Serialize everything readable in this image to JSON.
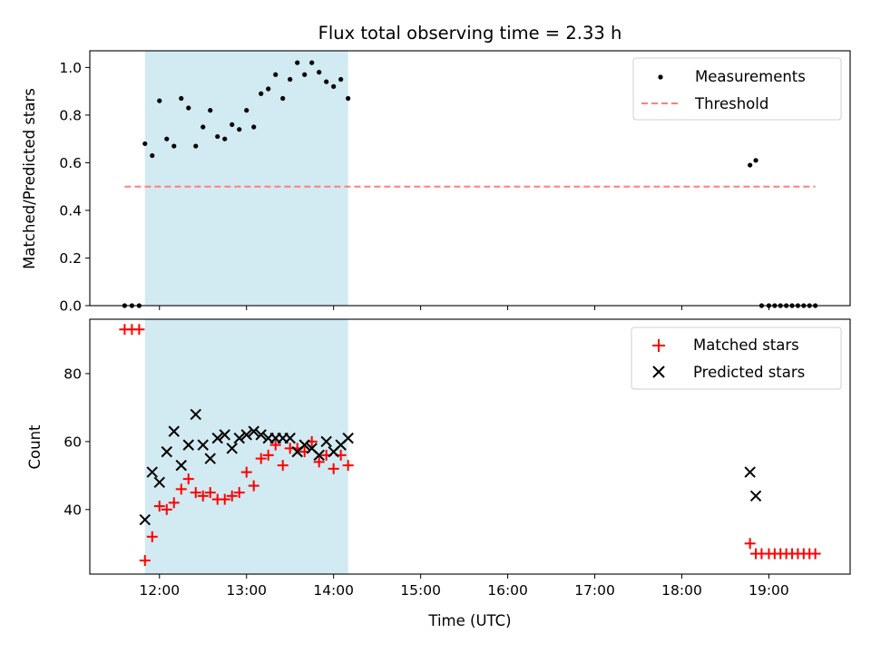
{
  "chart_data": [
    {
      "type": "scatter",
      "title": "Flux total observing time = 2.33 h",
      "xlabel": "",
      "ylabel": "Matched/Predicted stars",
      "ylim": [
        0,
        1.07
      ],
      "yticks": [
        "0.0",
        "0.2",
        "0.4",
        "0.6",
        "0.8",
        "1.0"
      ],
      "ytick_values": [
        0,
        0.2,
        0.4,
        0.6,
        0.8,
        1.0
      ],
      "xlim": [
        "11:12",
        "19:56"
      ],
      "xticks": [
        "12:00",
        "13:00",
        "14:00",
        "15:00",
        "16:00",
        "17:00",
        "18:00",
        "19:00"
      ],
      "xtick_labels_shown": false,
      "shaded_interval": [
        "11:50",
        "14:10"
      ],
      "shade_color": "#add8e6",
      "legend_position": "upper right",
      "series": [
        {
          "name": "Measurements",
          "marker": "dot",
          "color": "#000000",
          "x": [
            "11:36",
            "11:41",
            "11:46",
            "11:50",
            "11:55",
            "12:00",
            "12:05",
            "12:10",
            "12:15",
            "12:20",
            "12:25",
            "12:30",
            "12:35",
            "12:40",
            "12:45",
            "12:50",
            "12:55",
            "13:00",
            "13:05",
            "13:10",
            "13:15",
            "13:20",
            "13:25",
            "13:30",
            "13:35",
            "13:40",
            "13:45",
            "13:50",
            "13:55",
            "14:00",
            "14:05",
            "14:10",
            "18:47",
            "18:51",
            "18:55",
            "19:00",
            "19:04",
            "19:08",
            "19:12",
            "19:16",
            "19:20",
            "19:24",
            "19:28",
            "19:32"
          ],
          "y": [
            0,
            0,
            0,
            0.68,
            0.63,
            0.86,
            0.7,
            0.67,
            0.87,
            0.83,
            0.67,
            0.75,
            0.82,
            0.71,
            0.7,
            0.76,
            0.74,
            0.82,
            0.75,
            0.89,
            0.91,
            0.97,
            0.87,
            0.95,
            1.02,
            0.97,
            1.02,
            0.98,
            0.94,
            0.92,
            0.95,
            0.87,
            0.59,
            0.61,
            0,
            0,
            0,
            0,
            0,
            0,
            0,
            0,
            0,
            0
          ]
        },
        {
          "name": "Threshold",
          "marker": "dashed-line",
          "color": "#ff7f7f",
          "x": [
            "11:36",
            "19:32"
          ],
          "y": [
            0.5,
            0.5
          ]
        }
      ]
    },
    {
      "type": "scatter",
      "title": "",
      "xlabel": "Time (UTC)",
      "ylabel": "Count",
      "ylim": [
        21,
        96
      ],
      "yticks": [
        "40",
        "60",
        "80"
      ],
      "ytick_values": [
        40,
        60,
        80
      ],
      "xlim": [
        "11:12",
        "19:56"
      ],
      "xticks": [
        "12:00",
        "13:00",
        "14:00",
        "15:00",
        "16:00",
        "17:00",
        "18:00",
        "19:00"
      ],
      "xtick_labels_shown": true,
      "shaded_interval": [
        "11:50",
        "14:10"
      ],
      "shade_color": "#add8e6",
      "legend_position": "upper right",
      "series": [
        {
          "name": "Matched stars",
          "marker": "plus",
          "color": "#ff0000",
          "x": [
            "11:36",
            "11:41",
            "11:46",
            "11:50",
            "11:55",
            "12:00",
            "12:05",
            "12:10",
            "12:15",
            "12:20",
            "12:25",
            "12:30",
            "12:35",
            "12:40",
            "12:45",
            "12:50",
            "12:55",
            "13:00",
            "13:05",
            "13:10",
            "13:15",
            "13:20",
            "13:25",
            "13:30",
            "13:35",
            "13:40",
            "13:45",
            "13:50",
            "13:55",
            "14:00",
            "14:05",
            "14:10",
            "18:47",
            "18:51",
            "18:55",
            "19:00",
            "19:04",
            "19:08",
            "19:12",
            "19:16",
            "19:20",
            "19:24",
            "19:28",
            "19:32"
          ],
          "y": [
            93,
            93,
            93,
            25,
            32,
            41,
            40,
            42,
            46,
            49,
            45,
            44,
            45,
            43,
            43,
            44,
            45,
            51,
            47,
            55,
            56,
            59,
            53,
            58,
            58,
            57,
            60,
            54,
            56,
            52,
            56,
            53,
            30,
            27,
            27,
            27,
            27,
            27,
            27,
            27,
            27,
            27,
            27,
            27
          ]
        },
        {
          "name": "Predicted stars",
          "marker": "x",
          "color": "#000000",
          "x": [
            "11:50",
            "11:55",
            "12:00",
            "12:05",
            "12:10",
            "12:15",
            "12:20",
            "12:25",
            "12:30",
            "12:35",
            "12:40",
            "12:45",
            "12:50",
            "12:55",
            "13:00",
            "13:05",
            "13:10",
            "13:15",
            "13:20",
            "13:25",
            "13:30",
            "13:35",
            "13:40",
            "13:45",
            "13:50",
            "13:55",
            "14:00",
            "14:05",
            "14:10",
            "18:47",
            "18:51"
          ],
          "y": [
            37,
            51,
            48,
            57,
            63,
            53,
            59,
            68,
            59,
            55,
            61,
            62,
            58,
            61,
            62,
            63,
            62,
            61,
            61,
            61,
            61,
            57,
            59,
            58,
            56,
            60,
            57,
            59,
            61,
            51,
            44
          ]
        }
      ]
    }
  ]
}
